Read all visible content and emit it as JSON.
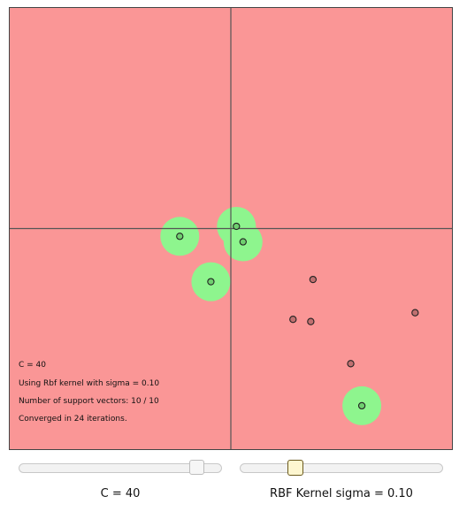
{
  "info": {
    "c_line": "C = 40",
    "kernel_line": "Using Rbf kernel with sigma = 0.10",
    "sv_line": "Number of support vectors: 10 / 10",
    "converged_line": "Converged in 24 iterations."
  },
  "controls": {
    "c_label": "C = 40",
    "c_value_fraction": 0.91,
    "sigma_label": "RBF Kernel sigma = 0.10",
    "sigma_value_fraction": 0.25
  },
  "colors": {
    "negative_region": "#fa9696",
    "positive_region": "#8ef58e",
    "axis": "#555555",
    "negative_point": "#c07070",
    "positive_point": "#6fcf6f",
    "point_outline": "#222222"
  },
  "plot": {
    "x_range": [
      -1,
      1
    ],
    "y_range": [
      -1,
      1
    ],
    "positive_points": [
      [
        -0.23,
        -0.035
      ],
      [
        0.025,
        0.01
      ],
      [
        0.055,
        -0.06
      ],
      [
        -0.09,
        -0.24
      ],
      [
        0.59,
        -0.8
      ]
    ],
    "negative_points": [
      [
        0.37,
        -0.23
      ],
      [
        0.28,
        -0.41
      ],
      [
        0.36,
        -0.42
      ],
      [
        0.83,
        -0.38
      ],
      [
        0.54,
        -0.61
      ]
    ]
  }
}
